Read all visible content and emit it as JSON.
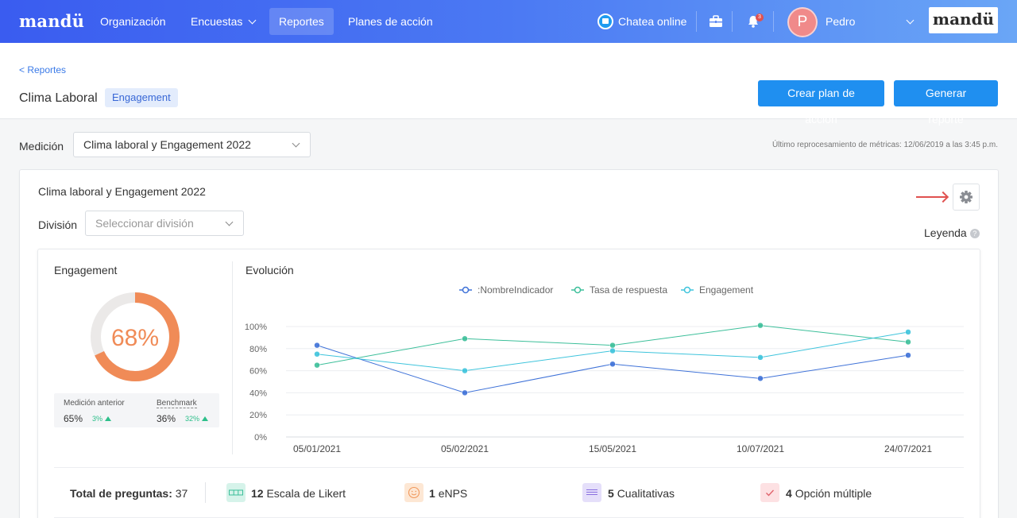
{
  "nav": {
    "logo": "mandü",
    "items": [
      "Organización",
      "Encuestas",
      "Reportes",
      "Planes de acción"
    ],
    "chat_label": "Chatea online",
    "notification_count": "3",
    "user_initial": "P",
    "user_name": "Pedro",
    "brand": "mandü"
  },
  "header": {
    "back": "< Reportes",
    "title": "Clima Laboral",
    "tag": "Engagement",
    "btn_plan": "Crear plan de acción",
    "btn_report": "Generar reporte"
  },
  "measure": {
    "label": "Medición",
    "selected": "Clima laboral y Engagement 2022",
    "reprocess": "Último reprocesamiento de métricas: 12/06/2019 a las 3:45 p.m."
  },
  "card": {
    "title": "Clima laboral y Engagement 2022",
    "division_label": "División",
    "division_placeholder": "Seleccionar división",
    "legend_label": "Leyenda",
    "help": "?"
  },
  "engagement": {
    "title": "Engagement",
    "value": 68,
    "value_text": "68%",
    "prev_label": "Medición anterior",
    "prev_value": "65%",
    "prev_delta": "3%",
    "bench_label": "Benchmark",
    "bench_value": "36%",
    "bench_delta": "32%"
  },
  "chart_data": {
    "type": "line",
    "title": "Evolución",
    "x": [
      "05/01/2021",
      "05/02/2021",
      "15/05/2021",
      "10/07/2021",
      "24/07/2021"
    ],
    "y_ticks": [
      "0%",
      "20%",
      "40%",
      "60%",
      "80%",
      "100%"
    ],
    "ylim": [
      0,
      100
    ],
    "legend_position": "top",
    "series": [
      {
        "name": ":NombreIndicador",
        "color": "#3f72d8",
        "values": [
          83,
          40,
          66,
          53,
          74
        ]
      },
      {
        "name": "Tasa de respuesta",
        "color": "#3cbf9a",
        "values": [
          65,
          89,
          83,
          101,
          86
        ]
      },
      {
        "name": "Engagement",
        "color": "#3ec4dc",
        "values": [
          75,
          60,
          78,
          72,
          95
        ]
      }
    ]
  },
  "questions": {
    "total_label": "Total de preguntas:",
    "total": "37",
    "items": [
      {
        "count": "12",
        "label": "Escala de Likert",
        "color": "#d6f3ea"
      },
      {
        "count": "1",
        "label": "eNPS",
        "color": "#fde7d4"
      },
      {
        "count": "5",
        "label": "Cualitativas",
        "color": "#e5dffa"
      },
      {
        "count": "4",
        "label": "Opción múltiple",
        "color": "#fde1e3"
      }
    ]
  }
}
